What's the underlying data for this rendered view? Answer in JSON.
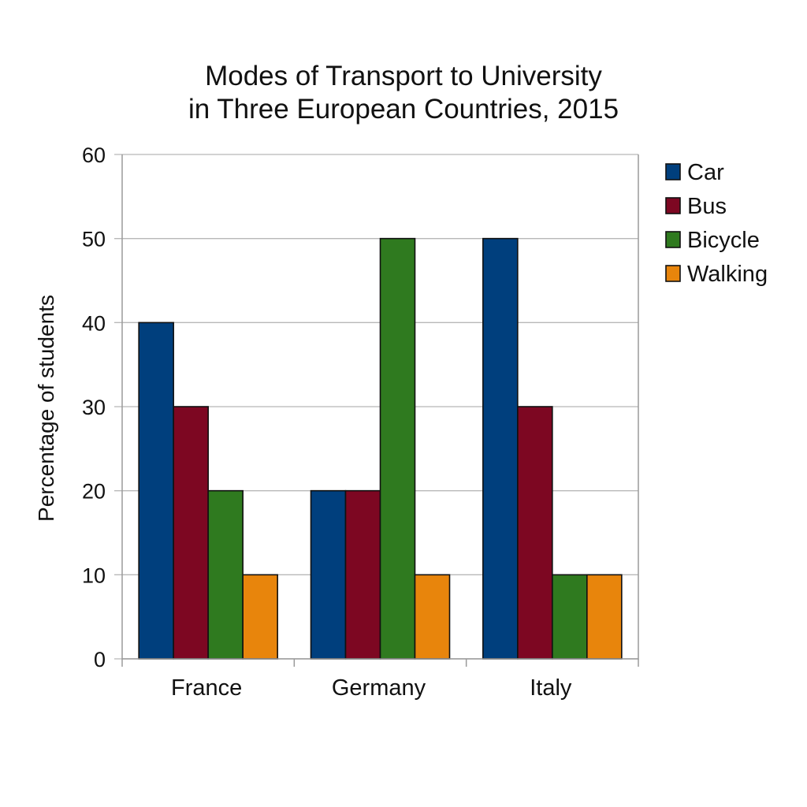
{
  "chart_data": {
    "type": "bar",
    "title": [
      "Modes of Transport to University",
      "in Three European Countries, 2015"
    ],
    "xlabel": "",
    "ylabel": "Percentage of students",
    "categories": [
      "France",
      "Germany",
      "Italy"
    ],
    "series": [
      {
        "name": "Car",
        "values": [
          40,
          20,
          50
        ],
        "color": "#003f7d"
      },
      {
        "name": "Bus",
        "values": [
          30,
          20,
          30
        ],
        "color": "#7d0722"
      },
      {
        "name": "Bicycle",
        "values": [
          20,
          50,
          10
        ],
        "color": "#2f7a1f"
      },
      {
        "name": "Walking",
        "values": [
          10,
          10,
          10
        ],
        "color": "#e8850c"
      }
    ],
    "ylim": [
      0,
      60
    ],
    "yticks": [
      0,
      10,
      20,
      30,
      40,
      50,
      60
    ],
    "grid": true,
    "legend": "right"
  }
}
